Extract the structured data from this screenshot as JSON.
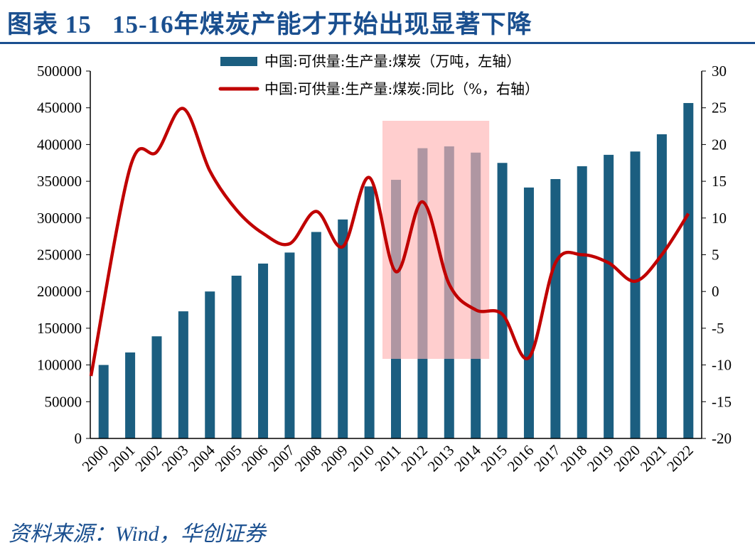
{
  "title": "图表 15   15-16年煤炭产能才开始出现显著下降",
  "source": "资料来源：Wind，华创证券",
  "chart_data": {
    "type": "bar+line",
    "categories": [
      "2000",
      "2001",
      "2002",
      "2003",
      "2004",
      "2005",
      "2006",
      "2007",
      "2008",
      "2009",
      "2010",
      "2011",
      "2012",
      "2013",
      "2014",
      "2015",
      "2016",
      "2017",
      "2018",
      "2019",
      "2020",
      "2021",
      "2022"
    ],
    "series": [
      {
        "name": "中国:可供量:生产量:煤炭（万吨，左轴）",
        "type": "bar",
        "axis": "left",
        "color": "#1b5e80",
        "values": [
          100000,
          117000,
          139000,
          173000,
          200000,
          221500,
          238000,
          253000,
          281000,
          298000,
          343000,
          352000,
          395000,
          397500,
          389000,
          375000,
          341500,
          353000,
          370500,
          386000,
          390500,
          414000,
          456500
        ]
      },
      {
        "name": "中国:可供量:生产量:煤炭:同比（%，右轴）",
        "type": "line",
        "axis": "right",
        "color": "#c00000",
        "values": [
          -11.5,
          16.9,
          19.0,
          24.9,
          16.4,
          11.1,
          7.9,
          6.5,
          10.9,
          6.1,
          15.5,
          2.7,
          12.2,
          1.0,
          -2.5,
          -3.1,
          -9.0,
          3.9,
          5.0,
          3.9,
          1.4,
          5.0,
          10.6
        ]
      }
    ],
    "left_axis": {
      "ylim": [
        0,
        500000
      ],
      "ticks": [
        "0",
        "50000",
        "100000",
        "150000",
        "200000",
        "250000",
        "300000",
        "350000",
        "400000",
        "450000",
        "500000"
      ]
    },
    "right_axis": {
      "ylim": [
        -20,
        30
      ],
      "ticks": [
        "-20",
        "-15",
        "-10",
        "-5",
        "0",
        "5",
        "10",
        "15",
        "20",
        "25",
        "30"
      ]
    },
    "highlight": {
      "from": "2011",
      "to": "2014",
      "color": "#ffb3b3"
    },
    "legend": "top-center",
    "grid": false
  }
}
